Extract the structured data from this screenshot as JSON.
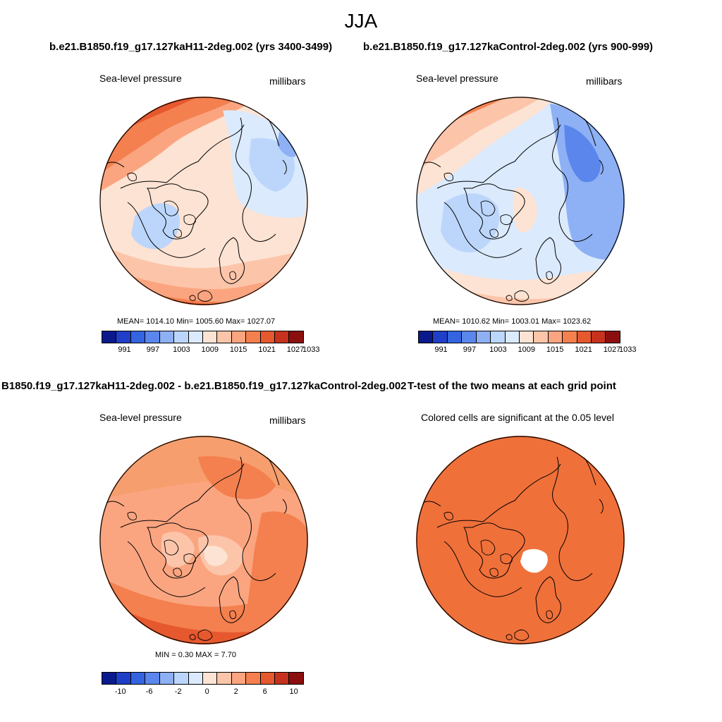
{
  "season": "JJA",
  "panels": {
    "top_left": {
      "title": "b.e21.B1850.f19_g17.127kaH11-2deg.002 (yrs 3400-3499)",
      "variable": "Sea-level pressure",
      "units": "millibars",
      "stats": "MEAN= 1014.10  Min= 1005.60  Max= 1027.07"
    },
    "top_right": {
      "title": "b.e21.B1850.f19_g17.127kaControl-2deg.002 (yrs 900-999)",
      "variable": "Sea-level pressure",
      "units": "millibars",
      "stats": "MEAN= 1010.62  Min= 1003.01  Max= 1023.62"
    },
    "bottom_left": {
      "title": "B1850.f19_g17.127kaH11-2deg.002 - b.e21.B1850.f19_g17.127kaControl-2deg.002",
      "variable": "Sea-level pressure",
      "units": "millibars",
      "stats": "MIN =   0.30 MAX =   7.70"
    },
    "bottom_right": {
      "title": "T-test of the two means at each grid point",
      "variable": "Colored cells are significant at the 0.05 level"
    }
  },
  "colorbars": {
    "pressure": {
      "colors": [
        "#0a1a8c",
        "#1f3fc8",
        "#3464e0",
        "#5b86ec",
        "#8eb0f4",
        "#bcd6fb",
        "#dbeafd",
        "#fde3d3",
        "#fcc5aa",
        "#fba580",
        "#f4804f",
        "#e6582e",
        "#c6321d",
        "#8c0f0f"
      ],
      "tick_labels": [
        "991",
        "997",
        "1003",
        "1009",
        "1015",
        "1021",
        "1027",
        "1033"
      ]
    },
    "difference": {
      "colors": [
        "#0a1a8c",
        "#1f3fc8",
        "#3464e0",
        "#5b86ec",
        "#8eb0f4",
        "#bcd6fb",
        "#dbeafd",
        "#fde3d3",
        "#fcc5aa",
        "#fba580",
        "#f4804f",
        "#e6582e",
        "#c6321d",
        "#8c0f0f"
      ],
      "tick_labels": [
        "-10",
        "-6",
        "-2",
        "0",
        "2",
        "6",
        "10"
      ]
    }
  },
  "colors": {
    "significant": "#f0703a"
  }
}
